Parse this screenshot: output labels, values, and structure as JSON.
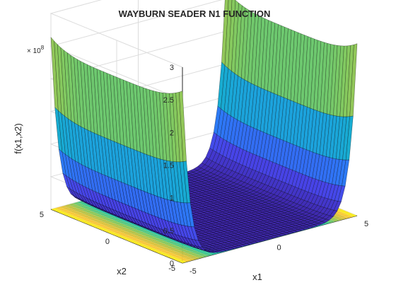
{
  "chart_data": {
    "type": "surface",
    "title": "WAYBURN SEADER N1 FUNCTION",
    "xlabel": "x1",
    "ylabel": "x2",
    "zlabel": "f(x1,x2)",
    "exponent_label": "× 10",
    "exponent_power": "8",
    "xlim": [
      -5,
      5
    ],
    "ylim": [
      -5,
      5
    ],
    "zlim": [
      0,
      300000000
    ],
    "x_ticks": [
      "-5",
      "0",
      "5"
    ],
    "y_ticks": [
      "-5",
      "0",
      "5"
    ],
    "z_ticks": [
      "0",
      "0.5",
      "1",
      "1.5",
      "2",
      "2.5",
      "3"
    ],
    "z_tick_values": [
      0,
      50000000,
      100000000,
      150000000,
      200000000,
      250000000,
      300000000
    ],
    "grid": true,
    "colormap": "parula",
    "contour_base": true,
    "function": "(x1^6 + x2^4 - 17)^2 + (2*x1 + x2 - 4)^2",
    "colors": {
      "axis": "#262626",
      "grid": "#dcdcdc",
      "mesh": "#000000",
      "parula": [
        "#3e26a8",
        "#4744e8",
        "#2d78f6",
        "#1f9be4",
        "#13b6c5",
        "#2fc59c",
        "#82c960",
        "#c9c141",
        "#f7c63c",
        "#f9fb15"
      ]
    }
  }
}
